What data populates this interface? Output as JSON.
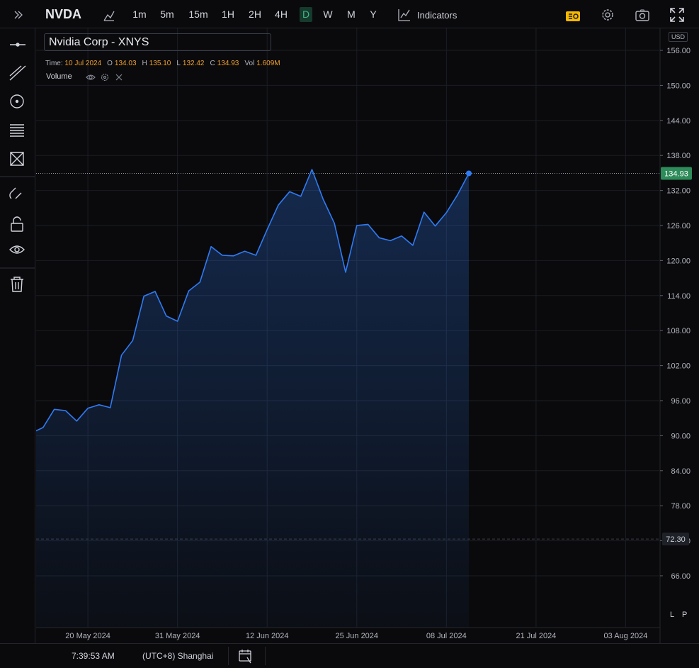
{
  "toolbar": {
    "symbol": "NVDA",
    "intervals": [
      "1m",
      "5m",
      "15m",
      "1H",
      "2H",
      "4H",
      "D",
      "W",
      "M",
      "Y"
    ],
    "active_interval": "D",
    "indicators": "Indicators"
  },
  "legend": {
    "name": "Nvidia Corp - XNYS",
    "time_label": "Time:",
    "time": "10 Jul 2024",
    "fields": [
      {
        "key": "O",
        "value": "134.03"
      },
      {
        "key": "H",
        "value": "135.10"
      },
      {
        "key": "L",
        "value": "132.42"
      },
      {
        "key": "C",
        "value": "134.93"
      },
      {
        "key": "Vol",
        "value": "1.609M"
      }
    ],
    "study": "Volume"
  },
  "chart_data": {
    "type": "area",
    "currency": "USD",
    "color": "#2f7bf5",
    "grid": true,
    "categories": [
      null,
      null,
      null,
      null,
      null,
      "20 May 2024",
      null,
      null,
      null,
      null,
      null,
      null,
      null,
      "31 May 2024",
      null,
      null,
      null,
      null,
      null,
      null,
      null,
      "12 Jun 2024",
      null,
      null,
      null,
      null,
      null,
      null,
      null,
      "25 Jun 2024",
      null,
      null,
      null,
      null,
      null,
      null,
      null,
      "08 Jul 2024",
      null,
      null,
      null,
      null,
      null,
      null,
      null,
      "21 Jul 2024",
      null,
      null,
      null,
      null,
      null,
      null,
      null,
      "03 Aug 2024"
    ],
    "values": [
      90.5,
      91.4,
      94.5,
      94.3,
      92.5,
      94.7,
      95.3,
      94.8,
      103.8,
      106.3,
      113.9,
      114.7,
      110.5,
      109.6,
      114.8,
      116.3,
      122.4,
      120.9,
      120.8,
      121.6,
      120.9,
      125.3,
      129.5,
      131.8,
      131.0,
      135.6,
      130.5,
      126.4,
      118.0,
      126.0,
      126.2,
      123.9,
      123.4,
      124.2,
      122.6,
      128.3,
      125.9,
      128.2,
      131.3,
      134.93,
      null,
      null,
      null,
      null,
      null,
      null,
      null,
      null,
      null,
      null,
      null,
      null,
      null,
      null
    ],
    "ylim": [
      57.13,
      159.77
    ],
    "yticks": [
      {
        "value": 66,
        "label": "66.00"
      },
      {
        "value": 72,
        "label": "72.00"
      },
      {
        "value": 78,
        "label": "78.00"
      },
      {
        "value": 84,
        "label": "84.00"
      },
      {
        "value": 90,
        "label": "90.00"
      },
      {
        "value": 96,
        "label": "96.00"
      },
      {
        "value": 102,
        "label": "102.00"
      },
      {
        "value": 108,
        "label": "108.00"
      },
      {
        "value": 114,
        "label": "114.00"
      },
      {
        "value": 120,
        "label": "120.00"
      },
      {
        "value": 126,
        "label": "126.00"
      },
      {
        "value": 132,
        "label": "132.00"
      },
      {
        "value": 138,
        "label": "138.00"
      },
      {
        "value": 144,
        "label": "144.00"
      },
      {
        "value": 150,
        "label": "150.00"
      },
      {
        "value": 156,
        "label": "156.00"
      }
    ],
    "crosshair": {
      "value": 72.3,
      "label": "72.30"
    },
    "scale_buttons": [
      "L",
      "P"
    ]
  },
  "status": {
    "time": "7:39:53 AM",
    "timezone": "(UTC+8) Shanghai"
  }
}
